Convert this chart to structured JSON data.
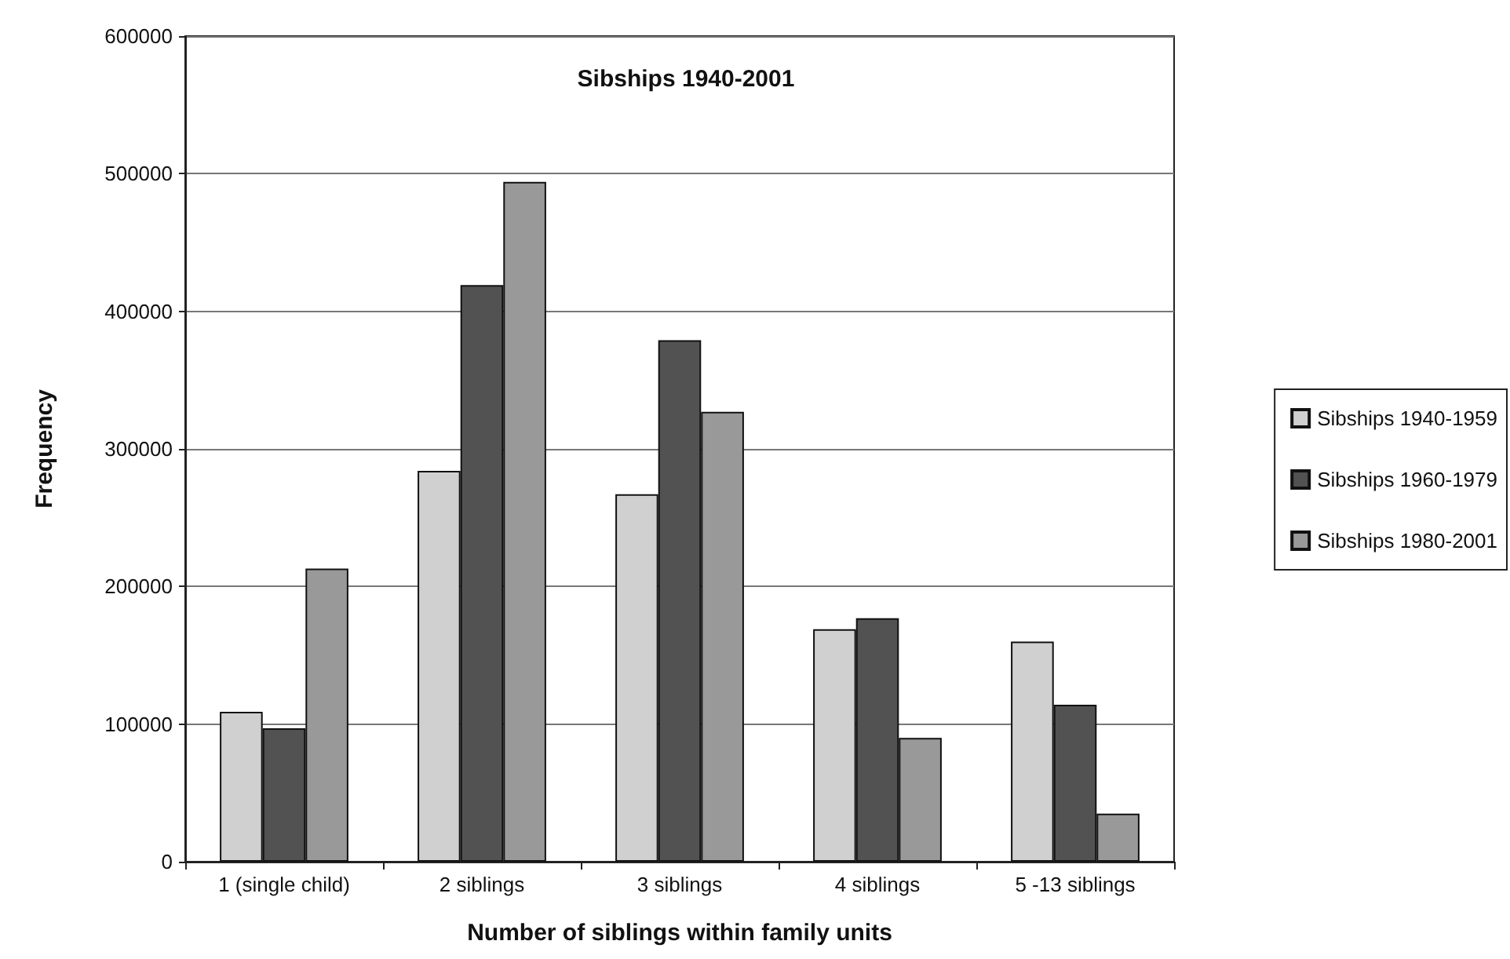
{
  "chart_data": {
    "type": "bar",
    "title": "Sibships 1940-2001",
    "xlabel": "Number of siblings within family units",
    "ylabel": "Frequency",
    "categories": [
      "1 (single child)",
      "2 siblings",
      "3 siblings",
      "4 siblings",
      "5 -13 siblings"
    ],
    "series": [
      {
        "name": "Sibships 1940-1959",
        "color": "#d0d0d0",
        "values": [
          109000,
          284000,
          267000,
          169000,
          160000
        ]
      },
      {
        "name": "Sibships 1960-1979",
        "color": "#525252",
        "values": [
          97000,
          419000,
          379000,
          177000,
          114000
        ]
      },
      {
        "name": "Sibships 1980-2001",
        "color": "#999999",
        "values": [
          213000,
          494000,
          327000,
          90000,
          35000
        ]
      }
    ],
    "ylim": [
      0,
      600000
    ],
    "yticks": [
      0,
      100000,
      200000,
      300000,
      400000,
      500000,
      600000
    ],
    "grid": "y",
    "legend": "right"
  }
}
